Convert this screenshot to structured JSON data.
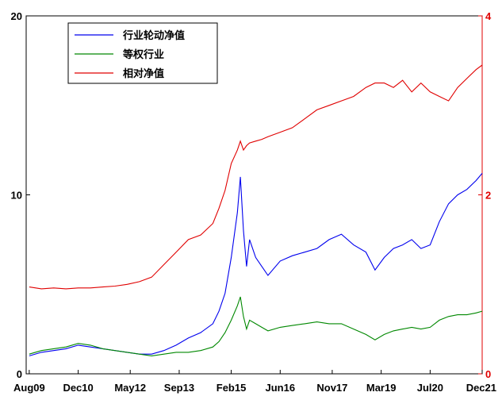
{
  "chart_data": {
    "type": "line",
    "title": "",
    "xlabel": "",
    "ylabel": "",
    "x_tick_labels": [
      "Aug09",
      "Dec10",
      "May12",
      "Sep13",
      "Feb15",
      "Jun16",
      "Nov17",
      "Mar19",
      "Jul20",
      "Dec21"
    ],
    "left_axis": {
      "ylim": [
        0,
        20
      ],
      "ticks": [
        "0",
        "10",
        "20"
      ],
      "color": "#000000"
    },
    "right_axis": {
      "ylim": [
        0,
        4
      ],
      "ticks": [
        "0",
        "2",
        "4"
      ],
      "color": "#e00000"
    },
    "grid": false,
    "legend_position": "top-left",
    "series": [
      {
        "name": "行业轮动净值",
        "axis": "left",
        "color": "#0000ee",
        "x": [
          "Aug09",
          "Dec09",
          "Apr10",
          "Aug10",
          "Dec10",
          "Apr11",
          "Aug11",
          "Dec11",
          "Apr12",
          "Aug12",
          "Dec12",
          "Apr13",
          "Aug13",
          "Dec13",
          "Apr14",
          "Aug14",
          "Oct14",
          "Dec14",
          "Feb15",
          "Apr15",
          "May15",
          "Jun15",
          "Jul15",
          "Aug15",
          "Oct15",
          "Dec15",
          "Feb16",
          "Jun16",
          "Oct16",
          "Feb17",
          "Jun17",
          "Oct17",
          "Feb18",
          "Jun18",
          "Oct18",
          "Jan19",
          "Apr19",
          "Jul19",
          "Oct19",
          "Jan20",
          "Apr20",
          "Jul20",
          "Oct20",
          "Jan21",
          "Apr21",
          "Jul21",
          "Oct21",
          "Dec21"
        ],
        "values": [
          1.0,
          1.2,
          1.3,
          1.4,
          1.6,
          1.5,
          1.4,
          1.3,
          1.2,
          1.1,
          1.1,
          1.3,
          1.6,
          2.0,
          2.3,
          2.8,
          3.5,
          4.5,
          6.5,
          9.0,
          11.0,
          8.0,
          6.0,
          7.5,
          6.5,
          6.0,
          5.5,
          6.3,
          6.6,
          6.8,
          7.0,
          7.5,
          7.8,
          7.2,
          6.8,
          5.8,
          6.5,
          7.0,
          7.2,
          7.5,
          7.0,
          7.2,
          8.5,
          9.5,
          10.0,
          10.3,
          10.8,
          11.2
        ]
      },
      {
        "name": "等权行业",
        "axis": "left",
        "color": "#008800",
        "x": [
          "Aug09",
          "Dec09",
          "Apr10",
          "Aug10",
          "Dec10",
          "Apr11",
          "Aug11",
          "Dec11",
          "Apr12",
          "Aug12",
          "Dec12",
          "Apr13",
          "Aug13",
          "Dec13",
          "Apr14",
          "Aug14",
          "Oct14",
          "Dec14",
          "Feb15",
          "Apr15",
          "May15",
          "Jun15",
          "Jul15",
          "Aug15",
          "Oct15",
          "Dec15",
          "Feb16",
          "Jun16",
          "Oct16",
          "Feb17",
          "Jun17",
          "Oct17",
          "Feb18",
          "Jun18",
          "Oct18",
          "Jan19",
          "Apr19",
          "Jul19",
          "Oct19",
          "Jan20",
          "Apr20",
          "Jul20",
          "Oct20",
          "Jan21",
          "Apr21",
          "Jul21",
          "Oct21",
          "Dec21"
        ],
        "values": [
          1.1,
          1.3,
          1.4,
          1.5,
          1.7,
          1.6,
          1.4,
          1.3,
          1.2,
          1.1,
          1.0,
          1.1,
          1.2,
          1.2,
          1.3,
          1.5,
          1.8,
          2.3,
          3.0,
          3.8,
          4.3,
          3.2,
          2.5,
          3.0,
          2.8,
          2.6,
          2.4,
          2.6,
          2.7,
          2.8,
          2.9,
          2.8,
          2.8,
          2.5,
          2.2,
          1.9,
          2.2,
          2.4,
          2.5,
          2.6,
          2.5,
          2.6,
          3.0,
          3.2,
          3.3,
          3.3,
          3.4,
          3.5
        ]
      },
      {
        "name": "相对净值",
        "axis": "right",
        "color": "#e00000",
        "x": [
          "Aug09",
          "Dec09",
          "Apr10",
          "Aug10",
          "Dec10",
          "Apr11",
          "Aug11",
          "Dec11",
          "Apr12",
          "Aug12",
          "Dec12",
          "Apr13",
          "Aug13",
          "Dec13",
          "Apr14",
          "Aug14",
          "Oct14",
          "Dec14",
          "Feb15",
          "Apr15",
          "May15",
          "Jun15",
          "Jul15",
          "Aug15",
          "Oct15",
          "Dec15",
          "Feb16",
          "Jun16",
          "Oct16",
          "Feb17",
          "Jun17",
          "Oct17",
          "Feb18",
          "Jun18",
          "Oct18",
          "Jan19",
          "Apr19",
          "Jul19",
          "Oct19",
          "Jan20",
          "Apr20",
          "Jul20",
          "Oct20",
          "Jan21",
          "Apr21",
          "Jul21",
          "Oct21",
          "Dec21"
        ],
        "values": [
          0.97,
          0.95,
          0.96,
          0.95,
          0.96,
          0.96,
          0.97,
          0.98,
          1.0,
          1.03,
          1.08,
          1.22,
          1.36,
          1.5,
          1.55,
          1.68,
          1.85,
          2.05,
          2.35,
          2.5,
          2.6,
          2.5,
          2.55,
          2.58,
          2.6,
          2.62,
          2.65,
          2.7,
          2.75,
          2.85,
          2.95,
          3.0,
          3.05,
          3.1,
          3.2,
          3.25,
          3.25,
          3.2,
          3.28,
          3.15,
          3.25,
          3.15,
          3.1,
          3.05,
          3.2,
          3.3,
          3.4,
          3.45
        ]
      }
    ]
  }
}
